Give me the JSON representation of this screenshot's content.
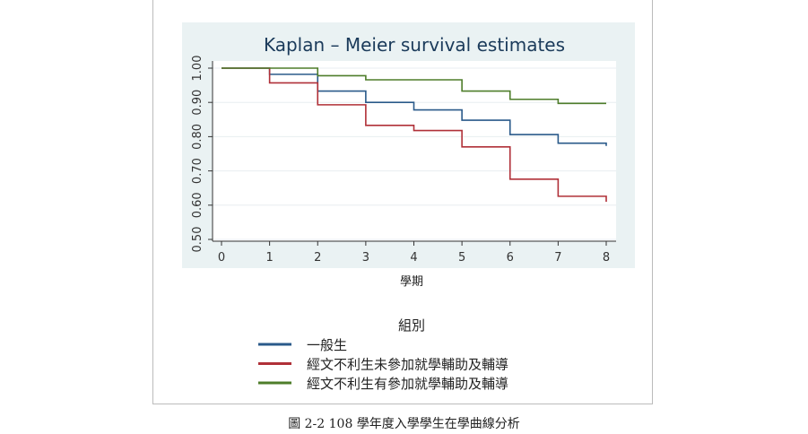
{
  "chart_data": {
    "type": "line",
    "subtype": "step",
    "title": "Kaplan – Meier survival estimates",
    "xlabel": "學期",
    "ylabel": "",
    "xlim": [
      0,
      8
    ],
    "ylim": [
      0.5,
      1.0
    ],
    "xticks": [
      "0",
      "1",
      "2",
      "3",
      "4",
      "5",
      "6",
      "7",
      "8"
    ],
    "yticks": [
      "0.50",
      "0.60",
      "0.70",
      "0.80",
      "0.90",
      "1.00"
    ],
    "grid": true,
    "legend_title": "組別",
    "legend_position": "bottom",
    "series": [
      {
        "name": "一般生",
        "color": "#2a5a8a",
        "x": [
          0,
          1,
          2,
          3,
          4,
          5,
          6,
          7,
          8
        ],
        "values": [
          1.0,
          0.982,
          0.933,
          0.9,
          0.878,
          0.848,
          0.806,
          0.781,
          0.773
        ]
      },
      {
        "name": "經文不利生未參加就學輔助及輔導",
        "color": "#b03038",
        "x": [
          0,
          1,
          2,
          3,
          4,
          5,
          6,
          7,
          8
        ],
        "values": [
          1.0,
          0.957,
          0.893,
          0.833,
          0.818,
          0.77,
          0.676,
          0.626,
          0.61
        ]
      },
      {
        "name": "經文不利生有參加就學輔助及輔導",
        "color": "#4e7d2a",
        "x": [
          0,
          1,
          2,
          3,
          4,
          5,
          6,
          7,
          8
        ],
        "values": [
          1.0,
          1.0,
          0.978,
          0.966,
          0.966,
          0.933,
          0.909,
          0.897,
          0.897
        ]
      }
    ]
  },
  "caption": "圖 2-2 108 學年度入學學生在學曲線分析"
}
